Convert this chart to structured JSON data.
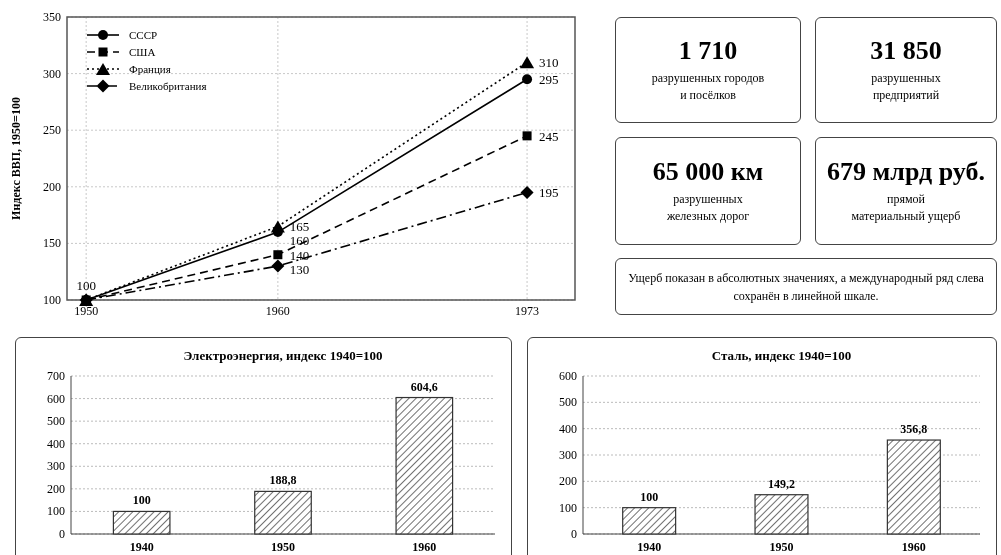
{
  "chart_data": [
    {
      "type": "line",
      "ylabel": "Индекс ВВП, 1950=100",
      "x": [
        1950,
        1960,
        1973
      ],
      "xlim": [
        1949,
        1975.5
      ],
      "xticks": [
        1950,
        1960,
        1973
      ],
      "ylim": [
        100,
        350
      ],
      "yticks": [
        100,
        150,
        200,
        250,
        300,
        350
      ],
      "grid": true,
      "legend": "top left",
      "series": [
        {
          "name": "СССР",
          "color": "#000000",
          "marker": "circle",
          "line_style": "solid",
          "values": [
            100,
            160,
            295
          ],
          "value_labels": [
            "100",
            "160",
            "295"
          ]
        },
        {
          "name": "США",
          "color": "#000000",
          "marker": "square",
          "line_style": "dashed",
          "values": [
            100,
            140,
            245
          ],
          "value_labels": [
            null,
            "140",
            "245"
          ]
        },
        {
          "name": "Франция",
          "color": "#000000",
          "marker": "triangle",
          "line_style": "dotted",
          "values": [
            100,
            165,
            310
          ],
          "value_labels": [
            null,
            "165",
            "310"
          ]
        },
        {
          "name": "Великобритания",
          "color": "#000000",
          "marker": "diamond",
          "line_style": "dashdot",
          "values": [
            100,
            130,
            195
          ],
          "value_labels": [
            null,
            "130",
            "195"
          ]
        }
      ]
    },
    {
      "type": "other",
      "title": "1 710",
      "subtitle": "разрушенных городов и посёлков"
    },
    {
      "type": "other",
      "title": "31 850",
      "subtitle": "разрушенных предприятий"
    },
    {
      "type": "other",
      "title": "65 000 км",
      "subtitle": "разрушенных железных дорог"
    },
    {
      "type": "other",
      "title": "679 млрд руб.",
      "subtitle": "прямой материальный ущерб"
    },
    {
      "type": "other",
      "annotations": [
        "Ущерб показан в абсолютных значениях, а международный ряд слева сохранён в линейной шкале."
      ]
    },
    {
      "type": "bar",
      "title": "Электроэнергия, индекс 1940=100",
      "categories": [
        "1940",
        "1950",
        "1960"
      ],
      "values": [
        100,
        188.8,
        604.6
      ],
      "value_labels": [
        "100",
        "188,8",
        "604,6"
      ],
      "color": "#333333",
      "ylim": [
        0,
        700
      ],
      "yticks": [
        0,
        100,
        200,
        300,
        400,
        500,
        600,
        700
      ],
      "grid": "y"
    },
    {
      "type": "bar",
      "title": "Сталь, индекс 1940=100",
      "categories": [
        "1940",
        "1950",
        "1960"
      ],
      "values": [
        100,
        149.2,
        356.8
      ],
      "value_labels": [
        "100",
        "149,2",
        "356,8"
      ],
      "color": "#333333",
      "ylim": [
        0,
        600
      ],
      "yticks": [
        0,
        100,
        200,
        300,
        400,
        500,
        600
      ],
      "grid": "y"
    }
  ]
}
